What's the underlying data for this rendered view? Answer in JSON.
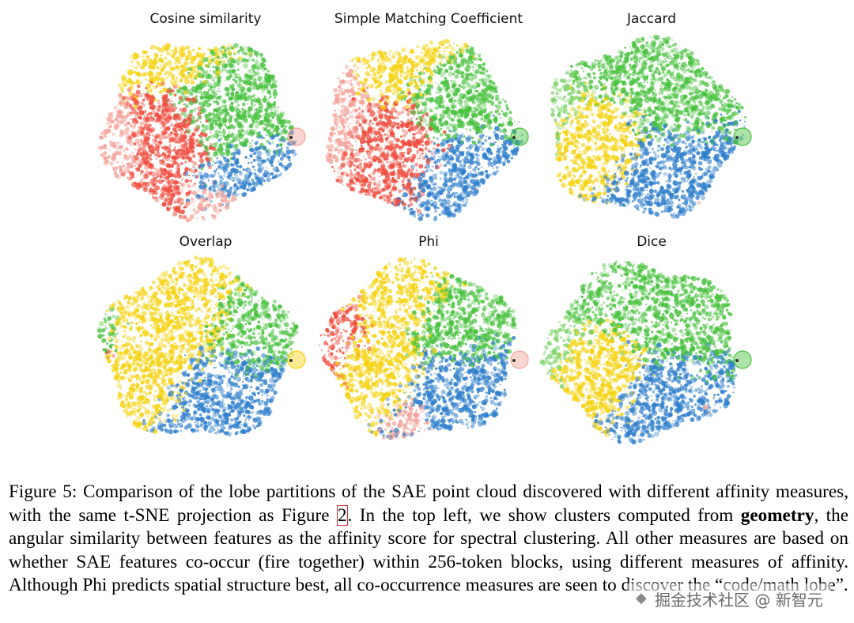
{
  "figure": {
    "panels": [
      {
        "title": "Cosine similarity",
        "palette": [
          "#f04c3e",
          "#f4a49b",
          "#f6d313",
          "#48c23e",
          "#2f7fcc"
        ]
      },
      {
        "title": "Simple Matching Coefficient",
        "palette": [
          "#f04c3e",
          "#f4a49b",
          "#f6d313",
          "#48c23e",
          "#2f7fcc"
        ]
      },
      {
        "title": "Jaccard",
        "palette": [
          "#48c23e",
          "#7ed46b",
          "#f6d313",
          "#2f7fcc",
          "#f4a49b"
        ]
      },
      {
        "title": "Overlap",
        "palette": [
          "#f6d313",
          "#48c23e",
          "#2f7fcc",
          "#f04c3e",
          "#f4a49b"
        ]
      },
      {
        "title": "Phi",
        "palette": [
          "#f6d313",
          "#48c23e",
          "#2f7fcc",
          "#f04c3e",
          "#f4a49b"
        ]
      },
      {
        "title": "Dice",
        "palette": [
          "#48c23e",
          "#7ed46b",
          "#f6d313",
          "#2f7fcc",
          "#f4a49b"
        ]
      }
    ]
  },
  "caption": {
    "label": "Figure 5:",
    "part1": " Comparison of the lobe partitions of the SAE point cloud discovered with different affinity measures, with the same t-SNE projection as Figure ",
    "ref": "2",
    "part2": ". In the top left, we show clusters computed from ",
    "bold": "geometry",
    "part3": ", the angular similarity between features as the affinity score for spectral clustering. All other measures are based on whether SAE features co-occur (fire together) within 256-token blocks, using different measures of affinity. Although Phi predicts spatial structure best, all co-occurrence measures are seen to discover the “code/math lobe”."
  },
  "watermark": {
    "text": "掘金技术社区 @ 新智元"
  }
}
